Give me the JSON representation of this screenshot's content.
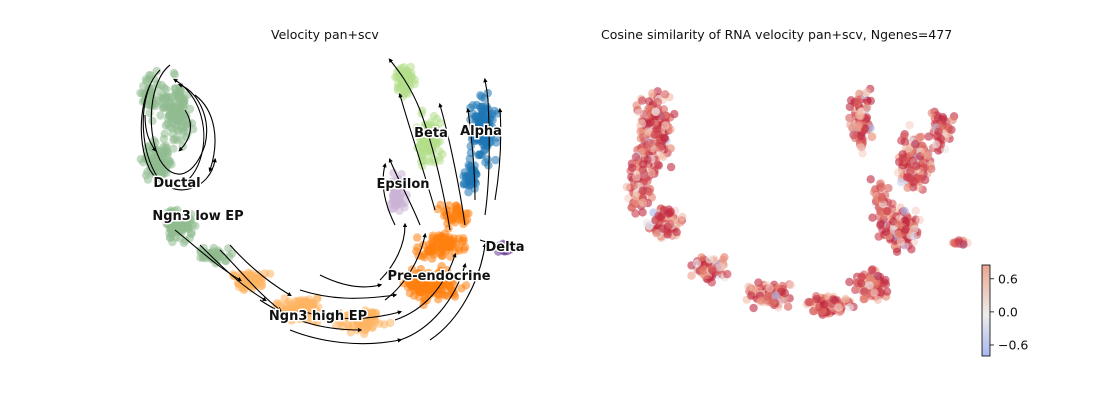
{
  "panels": [
    {
      "title": "Velocity pan+scv"
    },
    {
      "title": "Cosine similarity of RNA velocity pan+scv, Ngenes=477"
    }
  ],
  "chart_data": [
    {
      "type": "scatter",
      "title": "Velocity pan+scv",
      "xlabel": "",
      "ylabel": "",
      "axes_visible": false,
      "overlay": "velocity streamlines with arrows",
      "categories": [
        "Ductal",
        "Ngn3 low EP",
        "Ngn3 high EP",
        "Pre-endocrine",
        "Beta",
        "Alpha",
        "Delta",
        "Epsilon"
      ],
      "colors": {
        "Ductal": "#8fbc8f",
        "Ngn3 low EP": "#8fbc8f",
        "Ngn3 high EP": "#fdb462",
        "Pre-endocrine": "#ff7f0e",
        "Beta": "#b2df8a",
        "Alpha": "#1f77b4",
        "Delta": "#6a3d9a",
        "Epsilon": "#cab2d6"
      }
    },
    {
      "type": "scatter",
      "title": "Cosine similarity of RNA velocity pan+scv, Ngenes=477",
      "xlabel": "",
      "ylabel": "",
      "axes_visible": false,
      "colorbar": {
        "ticks": [
          "0.6",
          "0.0",
          "−0.6"
        ],
        "colormap": "coolwarm",
        "range": [
          -0.8,
          0.85
        ]
      }
    }
  ]
}
